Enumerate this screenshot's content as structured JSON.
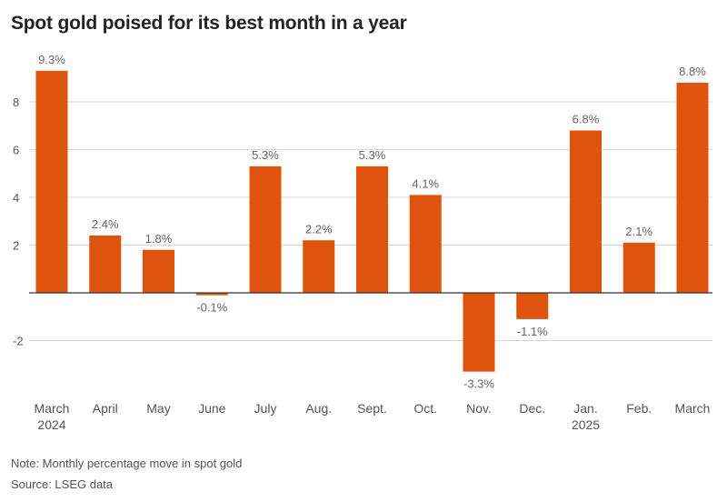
{
  "chart_data": {
    "type": "bar",
    "title": "Spot gold poised for its best month in a year",
    "categories": [
      "March",
      "April",
      "May",
      "June",
      "July",
      "Aug.",
      "Sept.",
      "Oct.",
      "Nov.",
      "Dec.",
      "Jan.",
      "Feb.",
      "March"
    ],
    "year_labels": [
      "2024",
      "",
      "",
      "",
      "",
      "",
      "",
      "",
      "",
      "",
      "2025",
      "",
      ""
    ],
    "values": [
      9.3,
      2.4,
      1.8,
      -0.1,
      5.3,
      2.2,
      5.3,
      4.1,
      -3.3,
      -1.1,
      6.8,
      2.1,
      8.8
    ],
    "data_labels": [
      "9.3%",
      "2.4%",
      "1.8%",
      "-0.1%",
      "5.3%",
      "2.2%",
      "5.3%",
      "4.1%",
      "-3.3%",
      "-1.1%",
      "6.8%",
      "2.1%",
      "8.8%"
    ],
    "yticks": [
      -2,
      2,
      4,
      6,
      8
    ],
    "ylim": [
      -4.5,
      10
    ],
    "xlabel": "",
    "ylabel": "",
    "grid": true,
    "bar_color": "#e0530f",
    "grid_color": "#d9d9d9"
  },
  "footer": {
    "note": "Note: Monthly percentage move in spot gold",
    "source": "Source: LSEG data"
  }
}
